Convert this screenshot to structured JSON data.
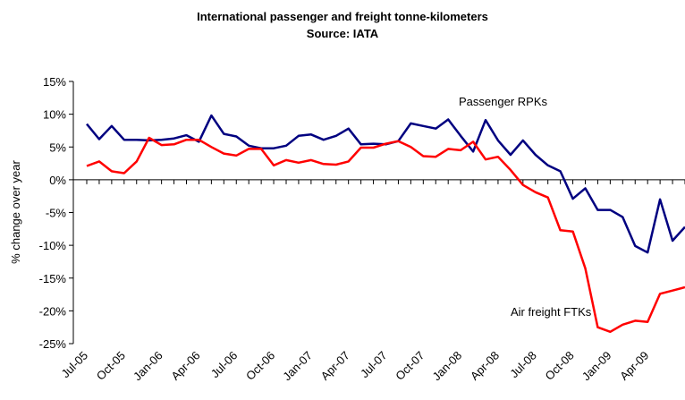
{
  "chart_data": {
    "type": "line",
    "title": "International passenger and freight tonne-kilometers",
    "subtitle": "Source: IATA",
    "ylabel": "% change over year",
    "categories": [
      "Jul-05",
      null,
      null,
      "Oct-05",
      null,
      null,
      "Jan-06",
      null,
      null,
      "Apr-06",
      null,
      null,
      "Jul-06",
      null,
      null,
      "Oct-06",
      null,
      null,
      "Jan-07",
      null,
      null,
      "Apr-07",
      null,
      null,
      "Jul-07",
      null,
      null,
      "Oct-07",
      null,
      null,
      "Jan-08",
      null,
      null,
      "Apr-08",
      null,
      null,
      "Jul-08",
      null,
      null,
      "Oct-08",
      null,
      null,
      "Jan-09",
      null,
      null,
      "Apr-09",
      null,
      null,
      null
    ],
    "series": [
      {
        "name": "Passenger RPKs",
        "color": "#000080",
        "values": [
          8.5,
          6.2,
          8.2,
          6.1,
          6.1,
          6.0,
          6.1,
          6.3,
          6.8,
          5.8,
          9.8,
          7.0,
          6.6,
          5.2,
          4.8,
          4.8,
          5.2,
          6.7,
          6.9,
          6.1,
          6.7,
          7.8,
          5.4,
          5.5,
          5.4,
          5.9,
          8.6,
          8.2,
          7.8,
          9.2,
          6.7,
          4.3,
          9.1,
          6.0,
          3.8,
          6.0,
          3.8,
          2.2,
          1.3,
          -2.9,
          -1.3,
          -4.6,
          -4.6,
          -5.7,
          -10.1,
          -11.1,
          -3.0,
          -9.3,
          -7.2
        ]
      },
      {
        "name": "Air freight FTKs",
        "color": "#ff0000",
        "values": [
          2.1,
          2.8,
          1.3,
          1.0,
          2.8,
          6.4,
          5.3,
          5.4,
          6.1,
          6.1,
          5.0,
          4.0,
          3.7,
          4.7,
          4.7,
          2.2,
          3.0,
          2.6,
          3.0,
          2.4,
          2.3,
          2.8,
          4.9,
          4.9,
          5.5,
          5.9,
          5.0,
          3.6,
          3.5,
          4.7,
          4.5,
          5.8,
          3.1,
          3.5,
          1.5,
          -0.8,
          -1.9,
          -2.7,
          -7.7,
          -7.9,
          -13.5,
          -22.5,
          -23.2,
          -22.1,
          -21.5,
          -21.7,
          -17.4,
          -16.9,
          -16.4
        ]
      }
    ],
    "ylim": [
      -25,
      15
    ],
    "yticks": [
      {
        "value": -25,
        "label": "-25%"
      },
      {
        "value": -20,
        "label": "-20%"
      },
      {
        "value": -15,
        "label": "-15%"
      },
      {
        "value": -10,
        "label": "-10%"
      },
      {
        "value": -5,
        "label": "-5%"
      },
      {
        "value": 0,
        "label": "0%"
      },
      {
        "value": 5,
        "label": "5%"
      },
      {
        "value": 10,
        "label": "10%"
      },
      {
        "value": 15,
        "label": "15%"
      }
    ],
    "grid": false
  }
}
